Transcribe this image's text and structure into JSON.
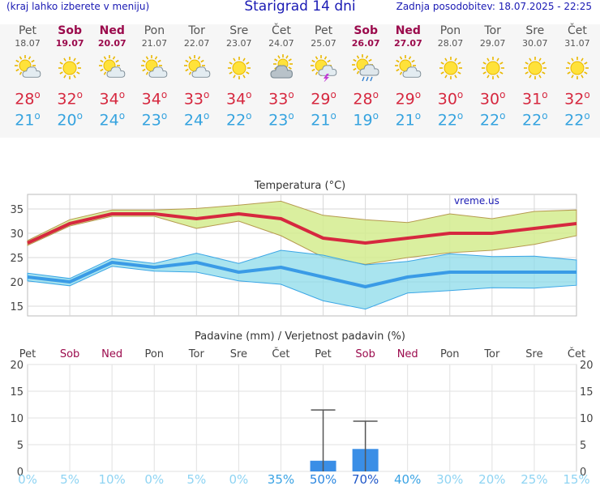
{
  "header": {
    "hint": "(kraj lahko izberete v meniju)",
    "title": "Starigrad 14 dni",
    "updated": "Zadnja posodobitev: 18.07.2025 - 22:25"
  },
  "days": [
    {
      "name": "Pet",
      "date": "18.07",
      "weekend": false,
      "icon": "sun-cloud-icon",
      "max": "28",
      "min": "21"
    },
    {
      "name": "Sob",
      "date": "19.07",
      "weekend": true,
      "icon": "sun-icon",
      "max": "32",
      "min": "20"
    },
    {
      "name": "Ned",
      "date": "20.07",
      "weekend": true,
      "icon": "sun-cloud-icon",
      "max": "34",
      "min": "24"
    },
    {
      "name": "Pon",
      "date": "21.07",
      "weekend": false,
      "icon": "sun-cloud-icon",
      "max": "34",
      "min": "23"
    },
    {
      "name": "Tor",
      "date": "22.07",
      "weekend": false,
      "icon": "sun-cloud-icon",
      "max": "33",
      "min": "24"
    },
    {
      "name": "Sre",
      "date": "23.07",
      "weekend": false,
      "icon": "sun-icon",
      "max": "34",
      "min": "22"
    },
    {
      "name": "Čet",
      "date": "24.07",
      "weekend": false,
      "icon": "cloud-sun-icon",
      "max": "33",
      "min": "23"
    },
    {
      "name": "Pet",
      "date": "25.07",
      "weekend": false,
      "icon": "sun-thunder-icon",
      "max": "29",
      "min": "21"
    },
    {
      "name": "Sob",
      "date": "26.07",
      "weekend": true,
      "icon": "sun-rain-icon",
      "max": "28",
      "min": "19"
    },
    {
      "name": "Ned",
      "date": "27.07",
      "weekend": true,
      "icon": "sun-cloud-icon",
      "max": "29",
      "min": "21"
    },
    {
      "name": "Pon",
      "date": "28.07",
      "weekend": false,
      "icon": "sun-icon",
      "max": "30",
      "min": "22"
    },
    {
      "name": "Tor",
      "date": "29.07",
      "weekend": false,
      "icon": "sun-icon",
      "max": "30",
      "min": "22"
    },
    {
      "name": "Sre",
      "date": "30.07",
      "weekend": false,
      "icon": "sun-icon",
      "max": "31",
      "min": "22"
    },
    {
      "name": "Čet",
      "date": "31.07",
      "weekend": false,
      "icon": "sun-icon",
      "max": "32",
      "min": "22"
    }
  ],
  "degree_symbol": "o",
  "colors": {
    "max": "#d6283f",
    "min": "#35a3df",
    "weekend": "#9b0a4c",
    "band_max": "#d4ec8e",
    "band_min": "#8cdbea",
    "bar": "#3a8ee6"
  },
  "chart_data": [
    {
      "type": "line",
      "title": "Temperatura (°C)",
      "watermark": "vreme.us",
      "categories": [
        "Pet",
        "Sob",
        "Ned",
        "Pon",
        "Tor",
        "Sre",
        "Čet",
        "Pet",
        "Sob",
        "Ned",
        "Pon",
        "Tor",
        "Sre",
        "Čet"
      ],
      "ylim": [
        13,
        38
      ],
      "yticks": [
        "15",
        "20",
        "25",
        "30",
        "35"
      ],
      "grid": true,
      "series": [
        {
          "name": "max",
          "values": [
            28,
            32,
            34,
            34,
            33,
            34,
            33,
            29,
            28,
            29,
            30,
            30,
            31,
            32
          ]
        },
        {
          "name": "min",
          "values": [
            21,
            20,
            24,
            23,
            24,
            22,
            23,
            21,
            19,
            21,
            22,
            22,
            22,
            22
          ]
        }
      ],
      "band_max": {
        "upper": [
          28.5,
          32.8,
          34.8,
          34.8,
          35.1,
          35.8,
          36.6,
          33.7,
          32.8,
          32.2,
          34,
          33,
          34.5,
          34.8
        ],
        "lower": [
          27.5,
          31.5,
          33.5,
          33.5,
          31,
          32.5,
          29.5,
          25.1,
          23.6,
          25,
          26,
          26.5,
          27.7,
          29.5
        ]
      },
      "band_min": {
        "upper": [
          21.8,
          20.7,
          24.8,
          23.8,
          25.9,
          23.8,
          26.5,
          25.5,
          23.5,
          24.2,
          25.8,
          25.2,
          25.3,
          24.5
        ],
        "lower": [
          20.2,
          19.2,
          23.2,
          22.2,
          22,
          20.2,
          19.5,
          16.1,
          14.4,
          17.7,
          18.2,
          18.8,
          18.7,
          19.3
        ]
      }
    },
    {
      "type": "bar",
      "title": "Padavine (mm) / Verjetnost padavin (%)",
      "categories": [
        "Pet",
        "Sob",
        "Ned",
        "Pon",
        "Tor",
        "Sre",
        "Čet",
        "Pet",
        "Sob",
        "Ned",
        "Pon",
        "Tor",
        "Sre",
        "Čet"
      ],
      "ylim": [
        0,
        20
      ],
      "yticks": [
        "0",
        "5",
        "10",
        "15",
        "20"
      ],
      "values": [
        0,
        0,
        0,
        0,
        0,
        0,
        0,
        2,
        4.2,
        0,
        0,
        0,
        0,
        0
      ],
      "error_upper": [
        0,
        0,
        0,
        0,
        0,
        0,
        0,
        11.5,
        9.4,
        0,
        0,
        0,
        0,
        0
      ],
      "probabilities": [
        "0%",
        "5%",
        "10%",
        "0%",
        "5%",
        "0%",
        "35%",
        "50%",
        "70%",
        "40%",
        "30%",
        "20%",
        "25%",
        "15%"
      ],
      "probability_values": [
        0,
        5,
        10,
        0,
        5,
        0,
        35,
        50,
        70,
        40,
        30,
        20,
        25,
        15
      ]
    }
  ]
}
